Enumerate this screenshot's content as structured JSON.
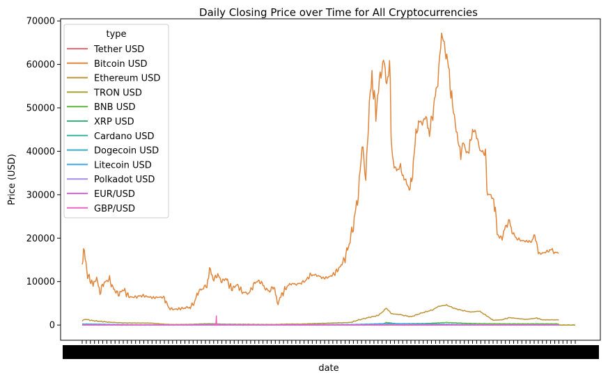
{
  "chart_data": {
    "type": "line",
    "title": "Daily Closing Price over Time for All Cryptocurrencies",
    "xlabel": "date",
    "ylabel": "Price (USD)",
    "ylim": [
      -3500,
      70500
    ],
    "yticks": [
      0,
      10000,
      20000,
      30000,
      40000,
      50000,
      60000,
      70000
    ],
    "ytick_labels": [
      "0",
      "10000",
      "20000",
      "30000",
      "40000",
      "50000",
      "60000",
      "70000"
    ],
    "x_count": 1800,
    "grid": false,
    "legend": {
      "title": "type",
      "placement": "top-left"
    },
    "series": [
      {
        "name": "Tether USD",
        "color": "#f0656e",
        "points": [
          [
            0,
            1
          ],
          [
            1800,
            1
          ]
        ]
      },
      {
        "name": "Bitcoin USD",
        "color": "#e0843a",
        "points": [
          [
            0,
            13600
          ],
          [
            5,
            17500
          ],
          [
            20,
            11500
          ],
          [
            40,
            9200
          ],
          [
            50,
            11200
          ],
          [
            65,
            7500
          ],
          [
            80,
            9800
          ],
          [
            100,
            10500
          ],
          [
            115,
            8200
          ],
          [
            135,
            7000
          ],
          [
            150,
            8300
          ],
          [
            170,
            6500
          ],
          [
            190,
            6400
          ],
          [
            220,
            6800
          ],
          [
            240,
            6500
          ],
          [
            260,
            6300
          ],
          [
            280,
            6400
          ],
          [
            300,
            6400
          ],
          [
            315,
            4000
          ],
          [
            330,
            3600
          ],
          [
            350,
            3700
          ],
          [
            370,
            3900
          ],
          [
            395,
            4100
          ],
          [
            410,
            5200
          ],
          [
            425,
            7800
          ],
          [
            440,
            8400
          ],
          [
            455,
            9200
          ],
          [
            465,
            12800
          ],
          [
            478,
            10500
          ],
          [
            495,
            11500
          ],
          [
            510,
            10000
          ],
          [
            525,
            10800
          ],
          [
            545,
            8200
          ],
          [
            565,
            9300
          ],
          [
            585,
            7500
          ],
          [
            610,
            7300
          ],
          [
            625,
            9300
          ],
          [
            640,
            10200
          ],
          [
            660,
            9500
          ],
          [
            670,
            8300
          ],
          [
            685,
            7800
          ],
          [
            700,
            9000
          ],
          [
            712,
            5000
          ],
          [
            725,
            6600
          ],
          [
            745,
            8600
          ],
          [
            760,
            9500
          ],
          [
            785,
            9400
          ],
          [
            800,
            9700
          ],
          [
            815,
            10200
          ],
          [
            835,
            11600
          ],
          [
            860,
            11400
          ],
          [
            880,
            10800
          ],
          [
            900,
            11000
          ],
          [
            920,
            11800
          ],
          [
            940,
            13200
          ],
          [
            960,
            15500
          ],
          [
            975,
            18800
          ],
          [
            990,
            23000
          ],
          [
            1005,
            29000
          ],
          [
            1015,
            36000
          ],
          [
            1025,
            41000
          ],
          [
            1032,
            33000
          ],
          [
            1045,
            47000
          ],
          [
            1058,
            57000
          ],
          [
            1072,
            49000
          ],
          [
            1085,
            56000
          ],
          [
            1100,
            61000
          ],
          [
            1112,
            56000
          ],
          [
            1122,
            58000
          ],
          [
            1133,
            38000
          ],
          [
            1148,
            35500
          ],
          [
            1162,
            36500
          ],
          [
            1175,
            33800
          ],
          [
            1188,
            32000
          ],
          [
            1200,
            31000
          ],
          [
            1212,
            40000
          ],
          [
            1228,
            47000
          ],
          [
            1242,
            46500
          ],
          [
            1258,
            48000
          ],
          [
            1268,
            44000
          ],
          [
            1280,
            49000
          ],
          [
            1295,
            55000
          ],
          [
            1305,
            62000
          ],
          [
            1312,
            66500
          ],
          [
            1325,
            64000
          ],
          [
            1340,
            58000
          ],
          [
            1352,
            50000
          ],
          [
            1362,
            47000
          ],
          [
            1372,
            43000
          ],
          [
            1382,
            38000
          ],
          [
            1392,
            42500
          ],
          [
            1402,
            40000
          ],
          [
            1412,
            39500
          ],
          [
            1425,
            45000
          ],
          [
            1440,
            44000
          ],
          [
            1452,
            40000
          ],
          [
            1462,
            40200
          ],
          [
            1472,
            39000
          ],
          [
            1480,
            30000
          ],
          [
            1492,
            30000
          ],
          [
            1502,
            29000
          ],
          [
            1515,
            21000
          ],
          [
            1530,
            19800
          ],
          [
            1545,
            22500
          ],
          [
            1560,
            24000
          ],
          [
            1572,
            21000
          ],
          [
            1585,
            20000
          ],
          [
            1600,
            19500
          ],
          [
            1620,
            19300
          ],
          [
            1640,
            19200
          ],
          [
            1655,
            21000
          ],
          [
            1665,
            16500
          ],
          [
            1680,
            16500
          ],
          [
            1700,
            17000
          ],
          [
            1710,
            17500
          ],
          [
            1725,
            16700
          ],
          [
            1740,
            16600
          ]
        ]
      },
      {
        "name": "Ethereum USD",
        "color": "#bc9436",
        "points": [
          [
            0,
            900
          ],
          [
            10,
            1350
          ],
          [
            40,
            1000
          ],
          [
            100,
            650
          ],
          [
            150,
            500
          ],
          [
            250,
            450
          ],
          [
            300,
            200
          ],
          [
            330,
            120
          ],
          [
            400,
            170
          ],
          [
            440,
            280
          ],
          [
            470,
            300
          ],
          [
            520,
            200
          ],
          [
            600,
            180
          ],
          [
            700,
            130
          ],
          [
            750,
            230
          ],
          [
            800,
            230
          ],
          [
            850,
            350
          ],
          [
            880,
            400
          ],
          [
            930,
            500
          ],
          [
            980,
            600
          ],
          [
            1010,
            1200
          ],
          [
            1050,
            1800
          ],
          [
            1080,
            2200
          ],
          [
            1100,
            3200
          ],
          [
            1110,
            3900
          ],
          [
            1130,
            2600
          ],
          [
            1160,
            2400
          ],
          [
            1200,
            1900
          ],
          [
            1240,
            2800
          ],
          [
            1280,
            3500
          ],
          [
            1300,
            4300
          ],
          [
            1330,
            4600
          ],
          [
            1360,
            3800
          ],
          [
            1400,
            3200
          ],
          [
            1420,
            3000
          ],
          [
            1450,
            3200
          ],
          [
            1480,
            2000
          ],
          [
            1500,
            1100
          ],
          [
            1530,
            1200
          ],
          [
            1560,
            1700
          ],
          [
            1590,
            1500
          ],
          [
            1620,
            1300
          ],
          [
            1660,
            1600
          ],
          [
            1680,
            1200
          ],
          [
            1740,
            1200
          ]
        ]
      },
      {
        "name": "TRON USD",
        "color": "#a6a02c",
        "points": [
          [
            0,
            0.05
          ],
          [
            1800,
            0.07
          ]
        ]
      },
      {
        "name": "BNB USD",
        "color": "#5cb83d",
        "points": [
          [
            0,
            10
          ],
          [
            300,
            8
          ],
          [
            500,
            25
          ],
          [
            900,
            30
          ],
          [
            1000,
            40
          ],
          [
            1100,
            280
          ],
          [
            1110,
            600
          ],
          [
            1150,
            300
          ],
          [
            1250,
            350
          ],
          [
            1300,
            500
          ],
          [
            1330,
            600
          ],
          [
            1400,
            400
          ],
          [
            1480,
            300
          ],
          [
            1560,
            280
          ],
          [
            1740,
            280
          ]
        ]
      },
      {
        "name": "XRP USD",
        "color": "#35b57c",
        "points": [
          [
            0,
            2
          ],
          [
            300,
            0.3
          ],
          [
            1100,
            1.5
          ],
          [
            1740,
            0.4
          ]
        ]
      },
      {
        "name": "Cardano USD",
        "color": "#32b3a4",
        "points": [
          [
            0,
            0.5
          ],
          [
            1100,
            1.5
          ],
          [
            1300,
            2.9
          ],
          [
            1740,
            0.3
          ]
        ]
      },
      {
        "name": "Dogecoin USD",
        "color": "#33adc4",
        "points": [
          [
            0,
            0.005
          ],
          [
            1100,
            0.5
          ],
          [
            1740,
            0.08
          ]
        ]
      },
      {
        "name": "Litecoin USD",
        "color": "#3ba4e6",
        "points": [
          [
            0,
            250
          ],
          [
            200,
            80
          ],
          [
            330,
            30
          ],
          [
            460,
            130
          ],
          [
            700,
            50
          ],
          [
            1000,
            150
          ],
          [
            1100,
            320
          ],
          [
            1300,
            230
          ],
          [
            1480,
            60
          ],
          [
            1740,
            70
          ]
        ]
      },
      {
        "name": "Polkadot USD",
        "color": "#a18ce6",
        "points": [
          [
            0,
            0
          ],
          [
            1740,
            5
          ]
        ]
      },
      {
        "name": "EUR/USD",
        "color": "#de63e5",
        "points": [
          [
            0,
            1.2
          ],
          [
            1740,
            1.0
          ]
        ]
      },
      {
        "name": "GBP/USD",
        "color": "#ed62c3",
        "points": [
          [
            0,
            1.35
          ],
          [
            488,
            1.3
          ],
          [
            490,
            2000
          ],
          [
            491,
            1.3
          ],
          [
            1740,
            1.2
          ]
        ]
      }
    ]
  }
}
